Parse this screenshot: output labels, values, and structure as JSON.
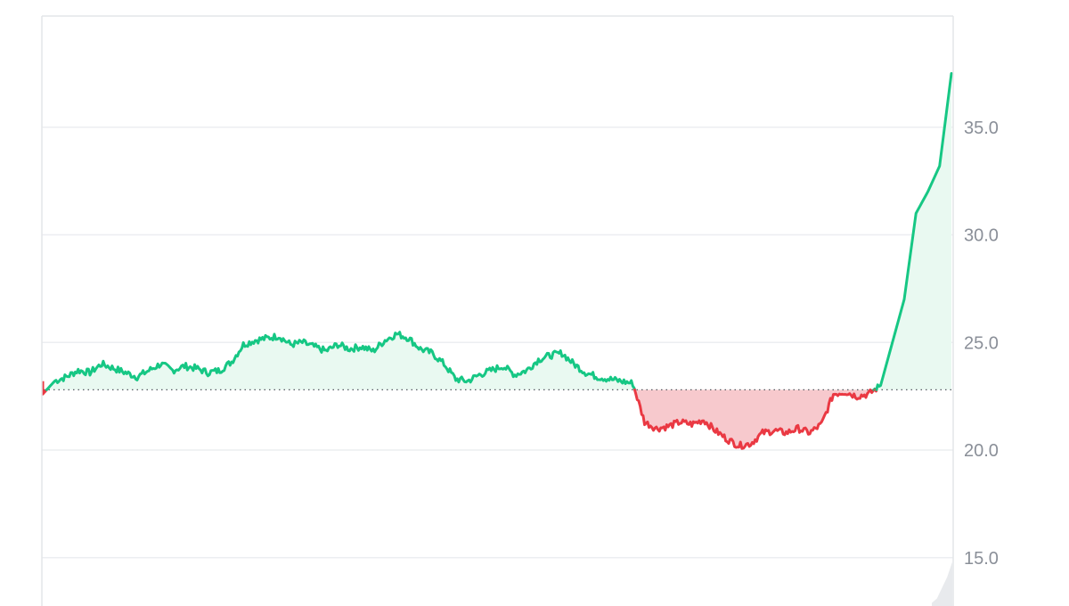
{
  "chart_data": {
    "type": "area",
    "title": "",
    "xlabel": "",
    "ylabel": "",
    "ylim": [
      12.8,
      40.0
    ],
    "y_ticks": [
      35.0,
      30.0,
      25.0,
      20.0,
      15.0
    ],
    "y_tick_labels": [
      "35.0",
      "30.0",
      "25.0",
      "20.0",
      "15.0"
    ],
    "y_axis_position": "right",
    "grid": true,
    "baseline": 22.8,
    "baseline_style": "dotted",
    "colors": {
      "above": "#16c784",
      "above_fill": "#e9f9f1",
      "below": "#ea3943",
      "below_fill": "#f7c9cd",
      "grid": "#eceef1",
      "frame": "#e3e5e8",
      "volume": "#e8eaed"
    },
    "series": [
      {
        "values": [
          22.6,
          23.2,
          23.4,
          23.7,
          23.6,
          24.0,
          23.8,
          23.6,
          23.4,
          23.7,
          24.0,
          23.7,
          23.9,
          23.8,
          23.6,
          23.7,
          24.1,
          24.9,
          25.1,
          25.2,
          25.3,
          24.9,
          25.0,
          24.8,
          24.6,
          24.9,
          24.7,
          24.8,
          24.6,
          25.1,
          25.4,
          25.2,
          24.7,
          24.5,
          24.0,
          23.3,
          23.2,
          23.5,
          23.7,
          23.9,
          23.5,
          23.7,
          24.2,
          24.4,
          24.5,
          24.0,
          23.6,
          23.4,
          23.3,
          23.2,
          23.1,
          21.3,
          21.0,
          21.1,
          21.3,
          21.2,
          21.4,
          20.9,
          20.5,
          20.2,
          20.3,
          20.8,
          20.9,
          20.8,
          21.0,
          20.8,
          21.2,
          22.6,
          22.7,
          22.5,
          22.6,
          23.0,
          25.0,
          27.0,
          31.0,
          32.0,
          33.2,
          37.5
        ]
      }
    ],
    "volume": [
      12.9,
      13.1,
      13.6,
      14.1,
      14.8
    ]
  }
}
